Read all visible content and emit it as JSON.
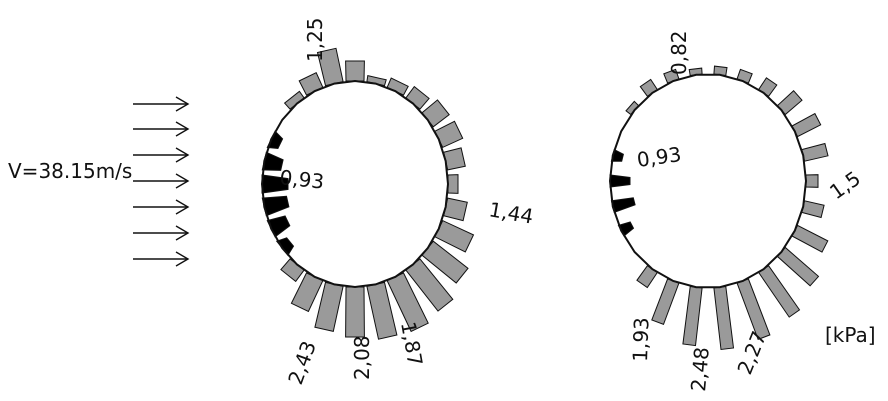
{
  "flow": {
    "velocity_label": "V=38.15m/s",
    "arrow_count": 7
  },
  "unit_label": "[kPa]",
  "colors": {
    "positive": "#9a9a9a",
    "negative": "#000000",
    "outline": "#111111"
  },
  "left_diagram": {
    "values": [
      "1,25",
      "0,93",
      "1,44",
      "1,87",
      "2,08",
      "2,43"
    ]
  },
  "right_diagram": {
    "values": [
      "0,82",
      "0,93",
      "1,5",
      "2,27",
      "2,48",
      "1,93"
    ]
  }
}
